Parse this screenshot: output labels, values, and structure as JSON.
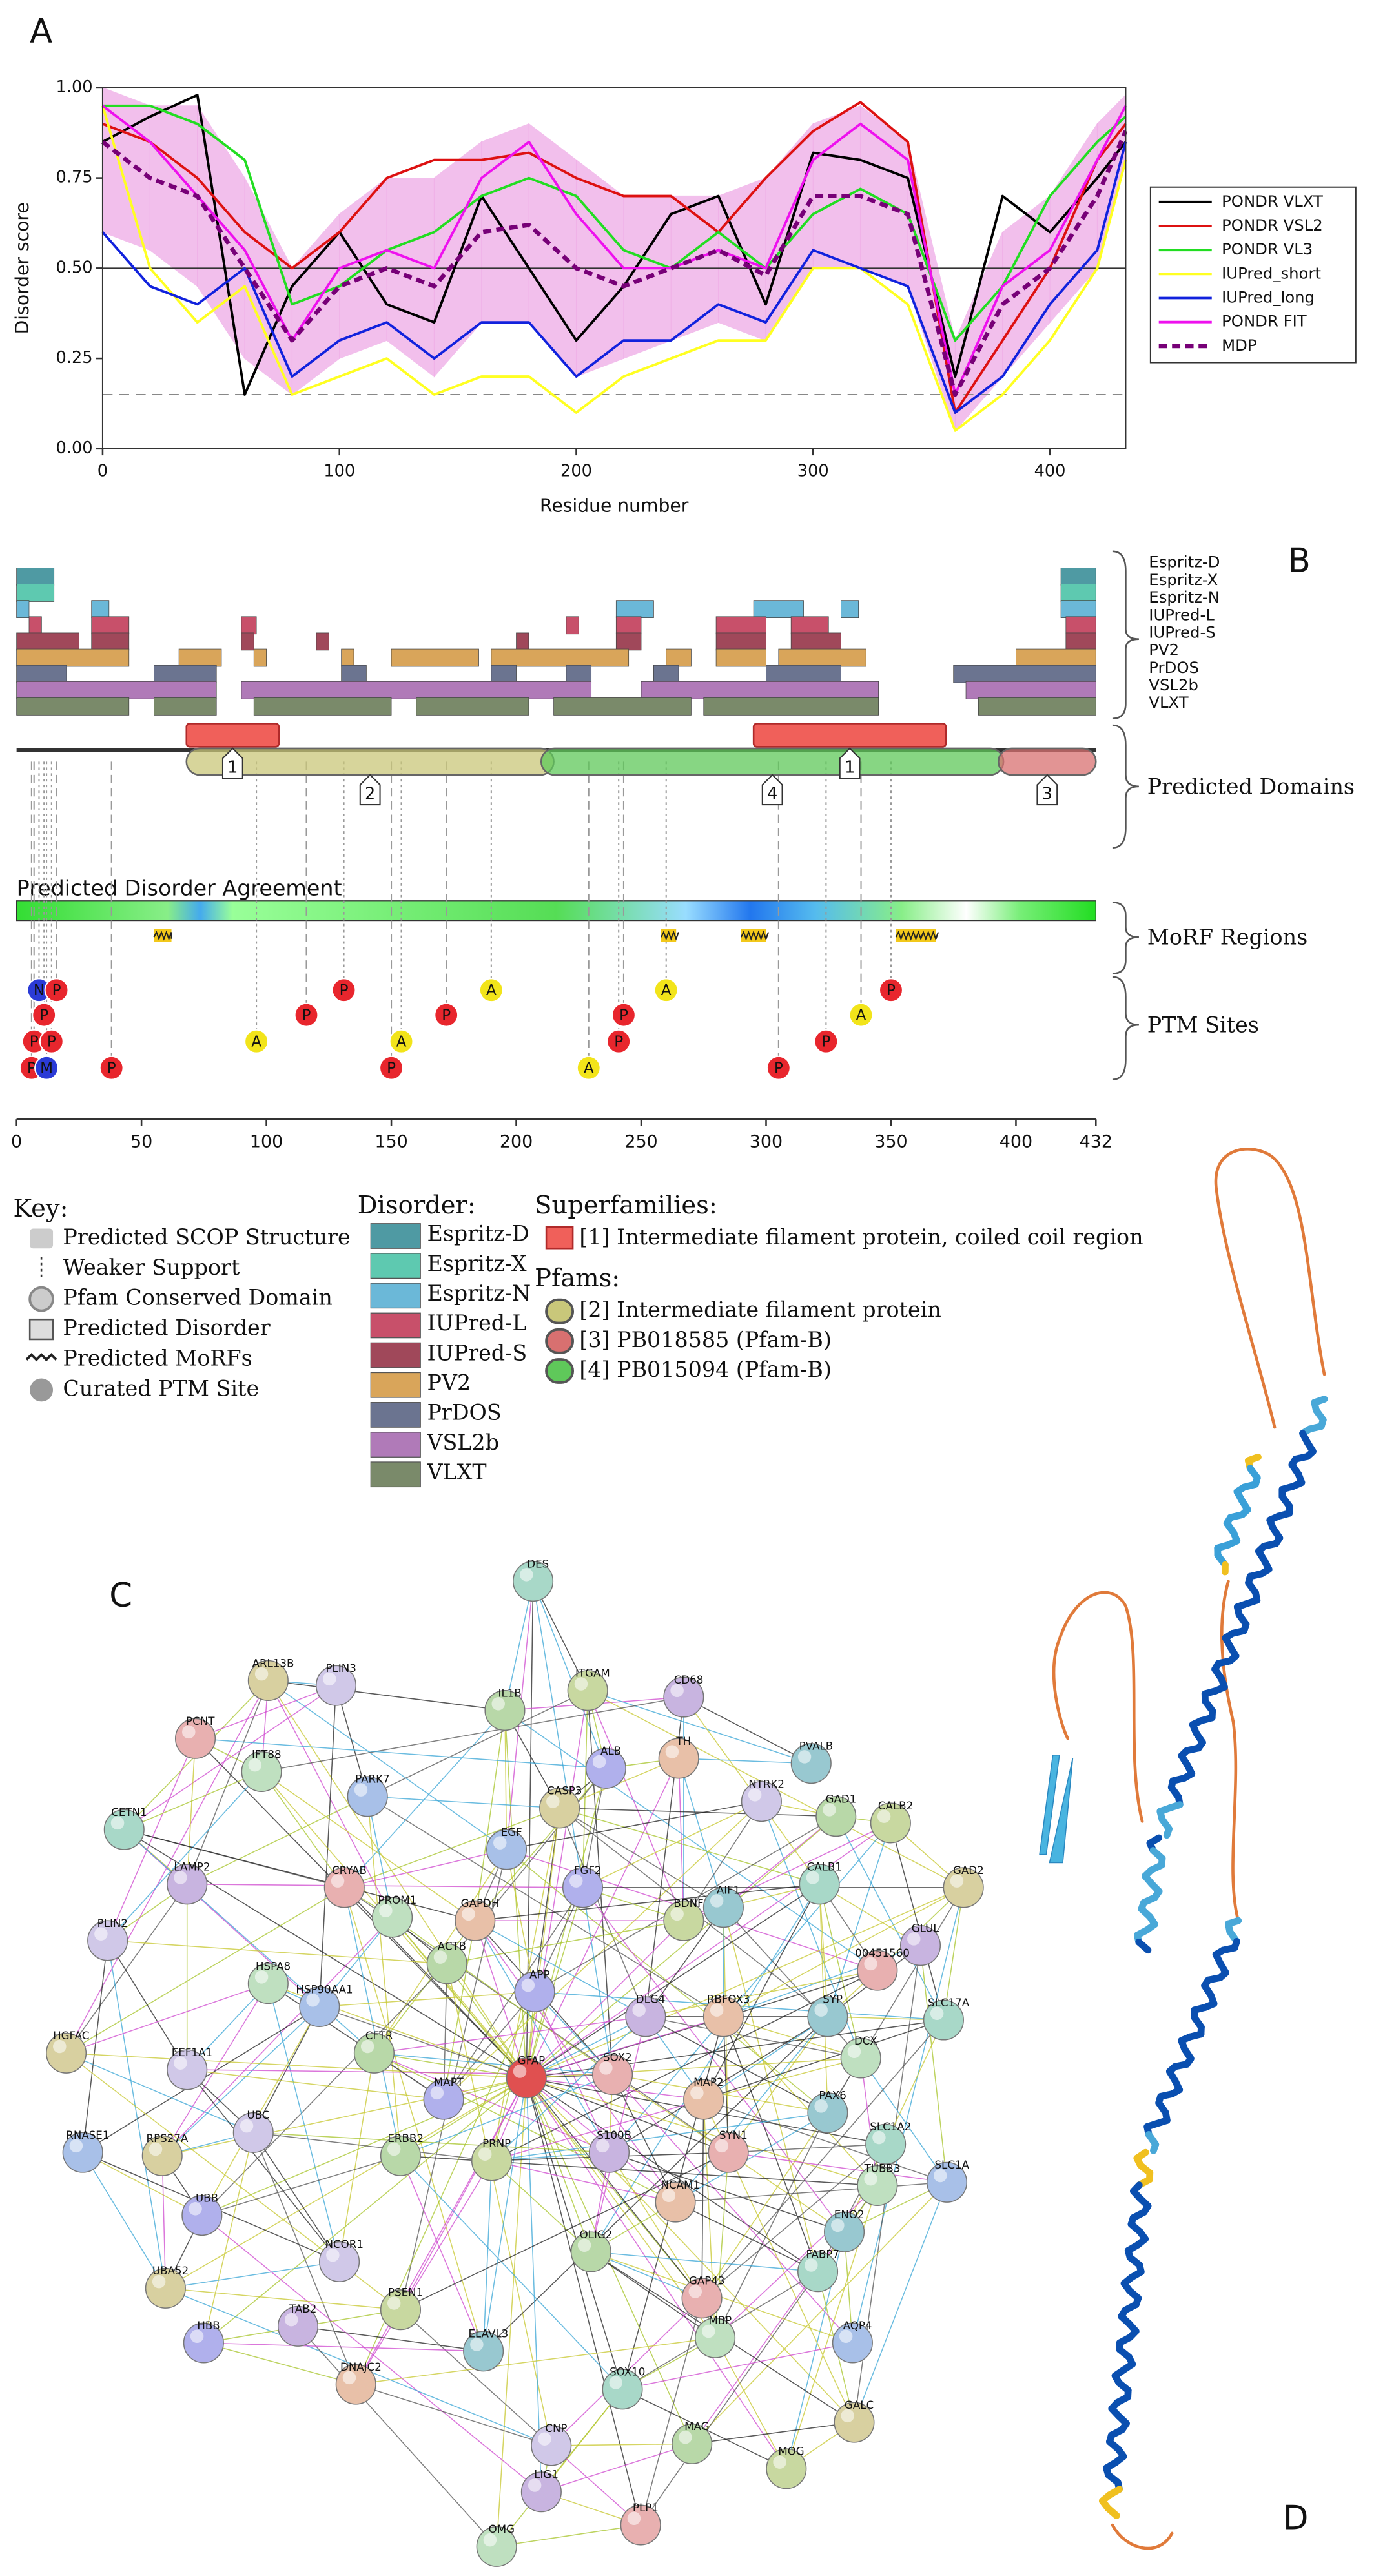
{
  "panel_labels": [
    "A",
    "B",
    "C",
    "D"
  ],
  "chart_data": {
    "type": "line",
    "ylabel": "Disorder score",
    "xlabel": "Residue number",
    "x": [
      0,
      20,
      40,
      60,
      80,
      100,
      120,
      140,
      160,
      180,
      200,
      220,
      240,
      260,
      280,
      300,
      320,
      340,
      360,
      380,
      400,
      420,
      432
    ],
    "xlim": [
      0,
      432
    ],
    "ylim": [
      0,
      1
    ],
    "xticks": [
      0,
      100,
      200,
      300,
      400
    ],
    "yticks": [
      {
        "value": 0,
        "label": "0.00"
      },
      {
        "value": 0.25,
        "label": "0.25"
      },
      {
        "value": 0.5,
        "label": "0.50"
      },
      {
        "value": 0.75,
        "label": "0.75"
      },
      {
        "value": 1,
        "label": "1.00"
      }
    ],
    "reference_lines": [
      {
        "value": 0.5,
        "style": "solid"
      },
      {
        "value": 0.15,
        "style": "dashed"
      }
    ],
    "band": {
      "color": "#f0b0e8",
      "lower": [
        0.6,
        0.55,
        0.45,
        0.25,
        0.15,
        0.25,
        0.3,
        0.2,
        0.35,
        0.35,
        0.2,
        0.25,
        0.3,
        0.35,
        0.3,
        0.5,
        0.5,
        0.45,
        0.05,
        0.2,
        0.35,
        0.5,
        0.8
      ],
      "upper": [
        1.0,
        0.95,
        0.95,
        0.75,
        0.5,
        0.65,
        0.75,
        0.75,
        0.85,
        0.9,
        0.8,
        0.7,
        0.7,
        0.7,
        0.75,
        0.9,
        0.95,
        0.85,
        0.3,
        0.6,
        0.7,
        0.9,
        0.98
      ]
    },
    "legend": "right",
    "series": [
      {
        "name": "PONDR VLXT",
        "color": "#000000",
        "style": "solid",
        "values": [
          0.85,
          0.92,
          0.98,
          0.15,
          0.45,
          0.6,
          0.4,
          0.35,
          0.7,
          0.5,
          0.3,
          0.45,
          0.65,
          0.7,
          0.4,
          0.82,
          0.8,
          0.75,
          0.2,
          0.7,
          0.6,
          0.75,
          0.85
        ]
      },
      {
        "name": "PONDR VSL2",
        "color": "#dd1111",
        "style": "solid",
        "values": [
          0.9,
          0.85,
          0.75,
          0.6,
          0.5,
          0.6,
          0.75,
          0.8,
          0.8,
          0.82,
          0.75,
          0.7,
          0.7,
          0.6,
          0.75,
          0.88,
          0.96,
          0.85,
          0.1,
          0.3,
          0.5,
          0.8,
          0.9
        ]
      },
      {
        "name": "PONDR VL3",
        "color": "#22dd22",
        "style": "solid",
        "values": [
          0.95,
          0.95,
          0.9,
          0.8,
          0.4,
          0.45,
          0.55,
          0.6,
          0.7,
          0.75,
          0.7,
          0.55,
          0.5,
          0.6,
          0.5,
          0.65,
          0.72,
          0.65,
          0.3,
          0.45,
          0.7,
          0.85,
          0.92
        ]
      },
      {
        "name": "IUPred_short",
        "color": "#ffff22",
        "style": "solid",
        "values": [
          0.95,
          0.5,
          0.35,
          0.45,
          0.15,
          0.2,
          0.25,
          0.15,
          0.2,
          0.2,
          0.1,
          0.2,
          0.25,
          0.3,
          0.3,
          0.5,
          0.5,
          0.4,
          0.05,
          0.15,
          0.3,
          0.5,
          0.8
        ]
      },
      {
        "name": "IUPred_long",
        "color": "#1122dd",
        "style": "solid",
        "values": [
          0.6,
          0.45,
          0.4,
          0.5,
          0.2,
          0.3,
          0.35,
          0.25,
          0.35,
          0.35,
          0.2,
          0.3,
          0.3,
          0.4,
          0.35,
          0.55,
          0.5,
          0.45,
          0.1,
          0.2,
          0.4,
          0.55,
          0.85
        ]
      },
      {
        "name": "PONDR FIT",
        "color": "#ee11ee",
        "style": "solid",
        "values": [
          0.95,
          0.85,
          0.7,
          0.55,
          0.3,
          0.5,
          0.55,
          0.5,
          0.75,
          0.85,
          0.65,
          0.5,
          0.5,
          0.55,
          0.5,
          0.8,
          0.9,
          0.8,
          0.15,
          0.45,
          0.55,
          0.8,
          0.95
        ]
      },
      {
        "name": "MDP",
        "color": "#770077",
        "style": "dashed",
        "values": [
          0.85,
          0.75,
          0.7,
          0.5,
          0.3,
          0.45,
          0.5,
          0.45,
          0.6,
          0.62,
          0.5,
          0.45,
          0.5,
          0.55,
          0.48,
          0.7,
          0.7,
          0.65,
          0.15,
          0.4,
          0.5,
          0.7,
          0.88
        ]
      }
    ]
  },
  "disorder_tracks": {
    "xlim": [
      0,
      432
    ],
    "xticks": [
      0,
      50,
      100,
      150,
      200,
      250,
      300,
      350,
      400,
      432
    ],
    "agreement_title": "Predicted Disorder Agreement",
    "predictors": [
      {
        "name": "Espritz-D",
        "color": "#4f9aa3",
        "segments": [
          [
            0,
            15
          ],
          [
            418,
            432
          ]
        ]
      },
      {
        "name": "Espritz-X",
        "color": "#5ec9b0",
        "segments": [
          [
            0,
            15
          ],
          [
            418,
            432
          ]
        ]
      },
      {
        "name": "Espritz-N",
        "color": "#6bb8d8",
        "segments": [
          [
            0,
            5
          ],
          [
            30,
            37
          ],
          [
            240,
            255
          ],
          [
            295,
            315
          ],
          [
            330,
            337
          ],
          [
            418,
            432
          ]
        ]
      },
      {
        "name": "IUPred-L",
        "color": "#c8506a",
        "segments": [
          [
            5,
            10
          ],
          [
            30,
            45
          ],
          [
            90,
            96
          ],
          [
            220,
            225
          ],
          [
            240,
            250
          ],
          [
            280,
            300
          ],
          [
            310,
            325
          ],
          [
            420,
            432
          ]
        ]
      },
      {
        "name": "IUPred-S",
        "color": "#a0485a",
        "segments": [
          [
            0,
            25
          ],
          [
            30,
            45
          ],
          [
            90,
            95
          ],
          [
            120,
            125
          ],
          [
            200,
            205
          ],
          [
            240,
            250
          ],
          [
            280,
            300
          ],
          [
            310,
            330
          ],
          [
            420,
            432
          ]
        ]
      },
      {
        "name": "PV2",
        "color": "#d9a55a",
        "segments": [
          [
            0,
            45
          ],
          [
            65,
            82
          ],
          [
            95,
            100
          ],
          [
            130,
            135
          ],
          [
            150,
            185
          ],
          [
            190,
            245
          ],
          [
            260,
            270
          ],
          [
            280,
            300
          ],
          [
            305,
            340
          ],
          [
            400,
            432
          ]
        ]
      },
      {
        "name": "PrDOS",
        "color": "#6b7490",
        "segments": [
          [
            0,
            20
          ],
          [
            55,
            80
          ],
          [
            130,
            140
          ],
          [
            190,
            200
          ],
          [
            220,
            230
          ],
          [
            255,
            265
          ],
          [
            300,
            330
          ],
          [
            375,
            432
          ]
        ]
      },
      {
        "name": "VSL2b",
        "color": "#b07ab8",
        "segments": [
          [
            0,
            80
          ],
          [
            90,
            230
          ],
          [
            250,
            345
          ],
          [
            380,
            432
          ]
        ]
      },
      {
        "name": "VLXT",
        "color": "#7a8a6a",
        "segments": [
          [
            0,
            45
          ],
          [
            55,
            80
          ],
          [
            95,
            150
          ],
          [
            160,
            205
          ],
          [
            215,
            270
          ],
          [
            275,
            345
          ],
          [
            385,
            432
          ]
        ]
      }
    ]
  },
  "domains": [
    {
      "label": "1",
      "kind": "superfamily",
      "start": 68,
      "end": 105,
      "color": "#f0605a"
    },
    {
      "label": "2",
      "kind": "pfam",
      "start": 68,
      "end": 215,
      "color": "#c9c77a"
    },
    {
      "label": "4",
      "kind": "pfam",
      "start": 210,
      "end": 395,
      "color": "#5fc85a"
    },
    {
      "label": "1",
      "kind": "superfamily",
      "start": 295,
      "end": 372,
      "color": "#f0605a"
    },
    {
      "label": "3",
      "kind": "pfam",
      "start": 393,
      "end": 432,
      "color": "#d87070"
    }
  ],
  "morf_regions": [
    [
      55,
      62
    ],
    [
      258,
      264
    ],
    [
      290,
      300
    ],
    [
      352,
      368
    ]
  ],
  "ptm_sites": [
    {
      "label": "N",
      "position": 9
    },
    {
      "label": "P",
      "position": 16
    },
    {
      "label": "P",
      "position": 11
    },
    {
      "label": "P",
      "position": 7
    },
    {
      "label": "P",
      "position": 14
    },
    {
      "label": "P",
      "position": 6
    },
    {
      "label": "M",
      "position": 12
    },
    {
      "label": "P",
      "position": 38
    },
    {
      "label": "A",
      "position": 96
    },
    {
      "label": "P",
      "position": 116
    },
    {
      "label": "P",
      "position": 131
    },
    {
      "label": "P",
      "position": 150
    },
    {
      "label": "A",
      "position": 154
    },
    {
      "label": "P",
      "position": 172
    },
    {
      "label": "A",
      "position": 190
    },
    {
      "label": "A",
      "position": 229
    },
    {
      "label": "P",
      "position": 241
    },
    {
      "label": "P",
      "position": 243
    },
    {
      "label": "A",
      "position": 260
    },
    {
      "label": "P",
      "position": 305
    },
    {
      "label": "P",
      "position": 324
    },
    {
      "label": "A",
      "position": 338
    },
    {
      "label": "P",
      "position": 350
    }
  ],
  "section_labels": [
    "Predicted Domains",
    "MoRF Regions",
    "PTM Sites"
  ],
  "key": {
    "title": "Key:",
    "items": [
      "Predicted SCOP Structure",
      "Weaker Support",
      "Pfam Conserved Domain",
      "Predicted Disorder",
      "Predicted MoRFs",
      "Curated PTM Site"
    ]
  },
  "disorder_legend_title": "Disorder:",
  "superfamilies": {
    "title": "Superfamilies:",
    "items": [
      {
        "label": "[1] Intermediate filament protein, coiled coil region",
        "color": "#f0605a"
      }
    ]
  },
  "pfams": {
    "title": "Pfams:",
    "items": [
      {
        "label": "[2] Intermediate filament protein",
        "color": "#c9c77a"
      },
      {
        "label": "[3] PB018585 (Pfam-B)",
        "color": "#d87070"
      },
      {
        "label": "[4] PB015094 (Pfam-B)",
        "color": "#5fc85a"
      }
    ]
  },
  "network_nodes": [
    "DES",
    "ARL13B",
    "PLIN3",
    "IL1B",
    "ITGAM",
    "CD68",
    "PCNT",
    "IFT88",
    "PARK7",
    "ALB",
    "TH",
    "PVALB",
    "CETN1",
    "CASP3",
    "NTRK2",
    "GAD1",
    "CALB2",
    "LAMP2",
    "CRYAB",
    "PROM1",
    "EGF",
    "FGF2",
    "GAPDH",
    "AIF1",
    "CALB1",
    "GAD2",
    "PLIN2",
    "ACTB",
    "BDNF",
    "GLUL",
    "00451560",
    "HSPA8",
    "HSP90AA1",
    "APP",
    "RBFOX3",
    "SYP",
    "SLC17A",
    "HGFAC",
    "EEF1A1",
    "CFTR",
    "GFAP",
    "DLG4",
    "SOX2",
    "DCX",
    "RNASE1",
    "MAPT",
    "MAP2",
    "PAX6",
    "SLC1A2",
    "RPS27A",
    "UBC",
    "ERBB2",
    "PRNP",
    "S100B",
    "SYN1",
    "TUBB3",
    "SLC1A",
    "UBB",
    "NCAM1",
    "ENO2",
    "FABP7",
    "UBA52",
    "NCOR1",
    "OLIG2",
    "PSEN1",
    "TAB2",
    "GAP43",
    "MBP",
    "AQP4",
    "HBB",
    "DNAJC2",
    "ELAVL3",
    "SOX10",
    "GALC",
    "CNP",
    "MAG",
    "MOG",
    "LIG1",
    "PLP1",
    "OMG"
  ]
}
